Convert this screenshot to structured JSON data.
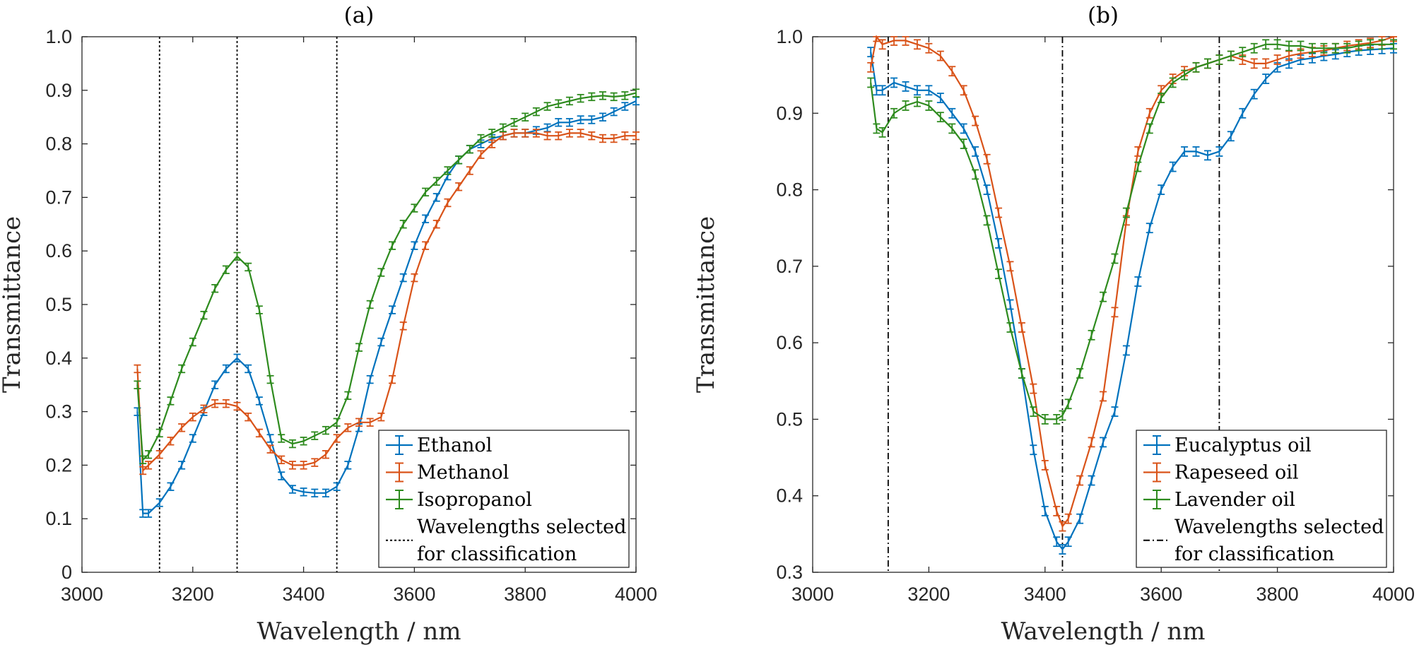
{
  "chart_data": [
    {
      "type": "line",
      "title": "(a)",
      "xlabel": "Wavelength / nm",
      "ylabel": "Transmittance",
      "xlim": [
        3000,
        4000
      ],
      "ylim": [
        0,
        1
      ],
      "xticks": [
        3000,
        3200,
        3400,
        3600,
        3800,
        4000
      ],
      "xtick_labels": [
        "3000",
        "3200",
        "3400",
        "3600",
        "3800",
        "4000"
      ],
      "yticks": [
        0,
        0.1,
        0.2,
        0.3,
        0.4,
        0.5,
        0.6,
        0.7,
        0.8,
        0.9,
        1.0
      ],
      "ytick_labels": [
        "0",
        "0.1",
        "0.2",
        "0.3",
        "0.4",
        "0.5",
        "0.6",
        "0.7",
        "0.8",
        "0.9",
        "1.0"
      ],
      "error_bars": true,
      "error_half_width": 0.007,
      "series": [
        {
          "name": "Ethanol",
          "color": "#0072BD",
          "x": [
            3100,
            3110,
            3120,
            3140,
            3160,
            3180,
            3200,
            3220,
            3240,
            3260,
            3280,
            3300,
            3320,
            3340,
            3360,
            3380,
            3400,
            3420,
            3440,
            3460,
            3480,
            3500,
            3520,
            3540,
            3560,
            3580,
            3600,
            3620,
            3640,
            3660,
            3680,
            3700,
            3720,
            3740,
            3760,
            3780,
            3800,
            3820,
            3840,
            3860,
            3880,
            3900,
            3920,
            3940,
            3960,
            3980,
            4000
          ],
          "y": [
            0.3,
            0.11,
            0.11,
            0.13,
            0.16,
            0.2,
            0.25,
            0.3,
            0.35,
            0.38,
            0.4,
            0.38,
            0.32,
            0.25,
            0.18,
            0.155,
            0.15,
            0.148,
            0.148,
            0.16,
            0.2,
            0.27,
            0.36,
            0.43,
            0.49,
            0.55,
            0.61,
            0.66,
            0.7,
            0.74,
            0.77,
            0.79,
            0.8,
            0.81,
            0.815,
            0.82,
            0.82,
            0.825,
            0.83,
            0.84,
            0.84,
            0.845,
            0.845,
            0.85,
            0.86,
            0.87,
            0.88
          ]
        },
        {
          "name": "Methanol",
          "color": "#D95319",
          "x": [
            3100,
            3110,
            3120,
            3140,
            3160,
            3180,
            3200,
            3220,
            3240,
            3260,
            3280,
            3300,
            3320,
            3340,
            3360,
            3380,
            3400,
            3420,
            3440,
            3460,
            3480,
            3500,
            3520,
            3540,
            3560,
            3580,
            3600,
            3620,
            3640,
            3660,
            3680,
            3700,
            3720,
            3740,
            3760,
            3780,
            3800,
            3820,
            3840,
            3860,
            3880,
            3900,
            3920,
            3940,
            3960,
            3980,
            4000
          ],
          "y": [
            0.38,
            0.19,
            0.2,
            0.22,
            0.245,
            0.27,
            0.29,
            0.305,
            0.315,
            0.315,
            0.31,
            0.29,
            0.26,
            0.23,
            0.21,
            0.2,
            0.2,
            0.205,
            0.22,
            0.25,
            0.27,
            0.28,
            0.28,
            0.29,
            0.36,
            0.46,
            0.55,
            0.61,
            0.65,
            0.69,
            0.72,
            0.75,
            0.78,
            0.8,
            0.815,
            0.82,
            0.82,
            0.82,
            0.815,
            0.815,
            0.82,
            0.82,
            0.815,
            0.81,
            0.81,
            0.815,
            0.815
          ]
        },
        {
          "name": "Isopropanol",
          "color": "#2E8B1E",
          "x": [
            3100,
            3110,
            3120,
            3140,
            3160,
            3180,
            3200,
            3220,
            3240,
            3260,
            3280,
            3300,
            3320,
            3340,
            3360,
            3380,
            3400,
            3420,
            3440,
            3460,
            3480,
            3500,
            3520,
            3540,
            3560,
            3580,
            3600,
            3620,
            3640,
            3660,
            3680,
            3700,
            3720,
            3740,
            3760,
            3780,
            3800,
            3820,
            3840,
            3860,
            3880,
            3900,
            3920,
            3940,
            3960,
            3980,
            4000
          ],
          "y": [
            0.35,
            0.21,
            0.22,
            0.26,
            0.32,
            0.38,
            0.43,
            0.48,
            0.53,
            0.565,
            0.59,
            0.57,
            0.49,
            0.36,
            0.25,
            0.24,
            0.245,
            0.255,
            0.265,
            0.28,
            0.33,
            0.42,
            0.5,
            0.56,
            0.61,
            0.65,
            0.68,
            0.71,
            0.73,
            0.75,
            0.77,
            0.79,
            0.81,
            0.82,
            0.83,
            0.84,
            0.85,
            0.86,
            0.87,
            0.875,
            0.88,
            0.885,
            0.888,
            0.89,
            0.888,
            0.89,
            0.895
          ]
        }
      ],
      "vlines": [
        3140,
        3280,
        3460
      ],
      "vline_style": "dotted",
      "legend": {
        "position": "bottom-right",
        "entries": [
          "Ethanol",
          "Methanol",
          "Isopropanol"
        ],
        "extra_entry_line1": "Wavelengths selected",
        "extra_entry_line2": "for classification"
      }
    },
    {
      "type": "line",
      "title": "(b)",
      "xlabel": "Wavelength / nm",
      "ylabel": "Transmittance",
      "xlim": [
        3000,
        4000
      ],
      "ylim": [
        0.3,
        1.0
      ],
      "xticks": [
        3000,
        3200,
        3400,
        3600,
        3800,
        4000
      ],
      "xtick_labels": [
        "3000",
        "3200",
        "3400",
        "3600",
        "3800",
        "4000"
      ],
      "yticks": [
        0.3,
        0.4,
        0.5,
        0.6,
        0.7,
        0.8,
        0.9,
        1.0
      ],
      "ytick_labels": [
        "0.3",
        "0.4",
        "0.5",
        "0.6",
        "0.7",
        "0.8",
        "0.9",
        "1.0"
      ],
      "error_bars": true,
      "error_half_width": 0.006,
      "series": [
        {
          "name": "Eucalyptus oil",
          "color": "#0072BD",
          "x": [
            3100,
            3110,
            3120,
            3140,
            3160,
            3180,
            3200,
            3220,
            3240,
            3260,
            3280,
            3300,
            3320,
            3340,
            3360,
            3380,
            3400,
            3420,
            3430,
            3440,
            3460,
            3480,
            3500,
            3520,
            3540,
            3560,
            3580,
            3600,
            3620,
            3640,
            3660,
            3680,
            3700,
            3720,
            3740,
            3760,
            3780,
            3800,
            3820,
            3840,
            3860,
            3880,
            3900,
            3920,
            3940,
            3960,
            3980,
            4000
          ],
          "y": [
            0.98,
            0.93,
            0.93,
            0.94,
            0.935,
            0.93,
            0.93,
            0.92,
            0.9,
            0.88,
            0.85,
            0.8,
            0.73,
            0.65,
            0.56,
            0.46,
            0.38,
            0.34,
            0.33,
            0.34,
            0.37,
            0.42,
            0.47,
            0.51,
            0.59,
            0.68,
            0.75,
            0.8,
            0.83,
            0.85,
            0.85,
            0.845,
            0.85,
            0.87,
            0.9,
            0.925,
            0.945,
            0.96,
            0.965,
            0.97,
            0.972,
            0.975,
            0.977,
            0.98,
            0.982,
            0.983,
            0.984,
            0.985
          ]
        },
        {
          "name": "Rapeseed oil",
          "color": "#D95319",
          "x": [
            3100,
            3110,
            3120,
            3140,
            3160,
            3180,
            3200,
            3220,
            3240,
            3260,
            3280,
            3300,
            3320,
            3340,
            3360,
            3380,
            3400,
            3420,
            3430,
            3440,
            3460,
            3480,
            3500,
            3520,
            3540,
            3560,
            3580,
            3600,
            3620,
            3640,
            3660,
            3680,
            3700,
            3720,
            3740,
            3760,
            3780,
            3800,
            3820,
            3840,
            3860,
            3880,
            3900,
            3920,
            3940,
            3960,
            3980,
            4000
          ],
          "y": [
            0.96,
            1.0,
            0.99,
            0.995,
            0.995,
            0.99,
            0.985,
            0.975,
            0.955,
            0.93,
            0.89,
            0.84,
            0.77,
            0.7,
            0.62,
            0.54,
            0.44,
            0.38,
            0.36,
            0.37,
            0.42,
            0.47,
            0.53,
            0.64,
            0.76,
            0.85,
            0.9,
            0.93,
            0.945,
            0.955,
            0.96,
            0.965,
            0.97,
            0.975,
            0.97,
            0.965,
            0.965,
            0.97,
            0.975,
            0.978,
            0.98,
            0.982,
            0.985,
            0.988,
            0.99,
            0.992,
            0.995,
            1.0
          ]
        },
        {
          "name": "Lavender oil",
          "color": "#2E8B1E",
          "x": [
            3100,
            3110,
            3120,
            3140,
            3160,
            3180,
            3200,
            3220,
            3240,
            3260,
            3280,
            3300,
            3320,
            3340,
            3360,
            3380,
            3400,
            3420,
            3430,
            3440,
            3460,
            3480,
            3500,
            3520,
            3540,
            3560,
            3580,
            3600,
            3620,
            3640,
            3660,
            3680,
            3700,
            3720,
            3740,
            3760,
            3780,
            3800,
            3820,
            3840,
            3860,
            3880,
            3900,
            3920,
            3940,
            3960,
            3980,
            4000
          ],
          "y": [
            0.94,
            0.88,
            0.875,
            0.9,
            0.91,
            0.915,
            0.91,
            0.895,
            0.88,
            0.86,
            0.82,
            0.76,
            0.69,
            0.62,
            0.56,
            0.51,
            0.5,
            0.5,
            0.505,
            0.52,
            0.56,
            0.61,
            0.66,
            0.71,
            0.77,
            0.83,
            0.88,
            0.92,
            0.94,
            0.95,
            0.96,
            0.965,
            0.97,
            0.975,
            0.98,
            0.985,
            0.99,
            0.99,
            0.988,
            0.988,
            0.985,
            0.985,
            0.985,
            0.985,
            0.988,
            0.99,
            0.99,
            0.99
          ]
        }
      ],
      "vlines": [
        3130,
        3430,
        3700
      ],
      "vline_style": "dashdot",
      "legend": {
        "position": "bottom-right",
        "entries": [
          "Eucalyptus oil",
          "Rapeseed oil",
          "Lavender oil"
        ],
        "extra_entry_line1": "Wavelengths selected",
        "extra_entry_line2": "for classification"
      }
    }
  ]
}
